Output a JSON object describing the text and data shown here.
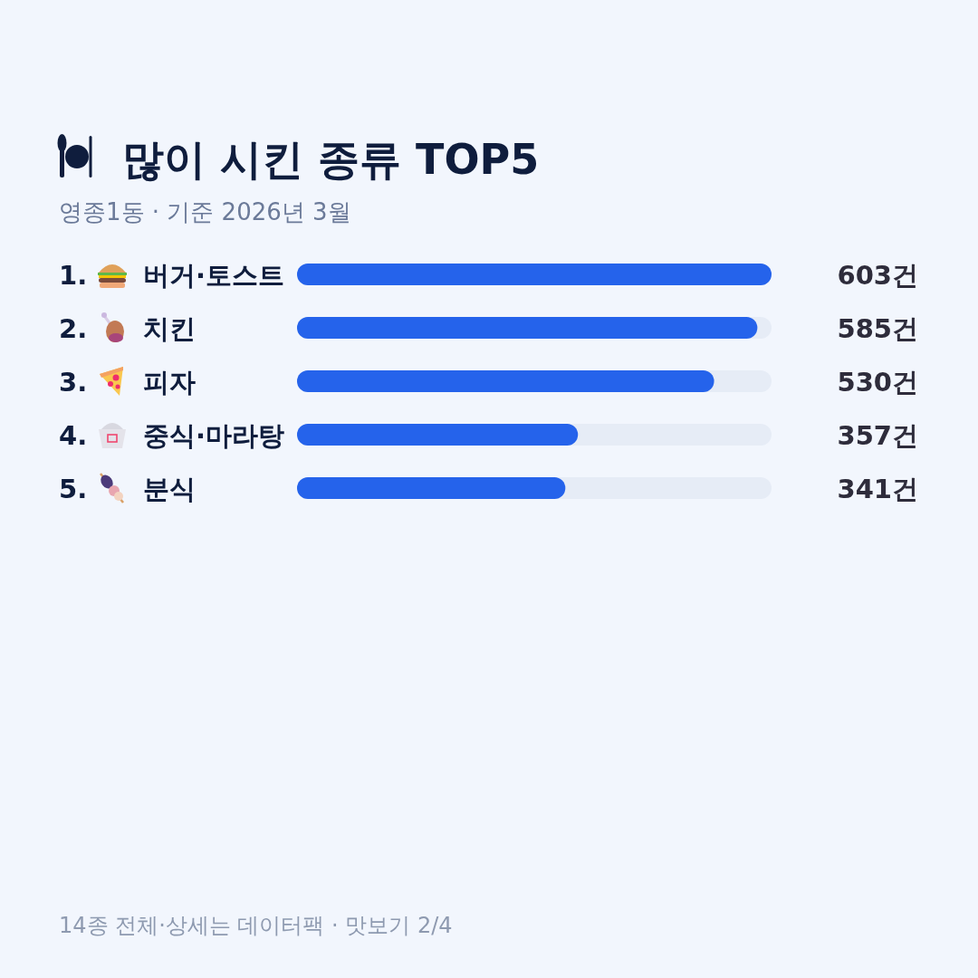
{
  "chart_data": {
    "type": "bar",
    "orientation": "horizontal",
    "title": "많이 시킨 종류 TOP5",
    "subtitle": "영종1동 · 기준 2026년 3월",
    "categories": [
      "1. 버거·토스트",
      "2. 치킨",
      "3. 피자",
      "4. 중식·마라탕",
      "5. 분식"
    ],
    "values": [
      603,
      585,
      530,
      357,
      341
    ],
    "value_labels": [
      "603건",
      "585건",
      "530건",
      "357건",
      "341건"
    ],
    "color": "#2563eb",
    "annotations": [
      "14종 전체·상세는 데이터팩 · 맛보기 2/4"
    ]
  }
}
